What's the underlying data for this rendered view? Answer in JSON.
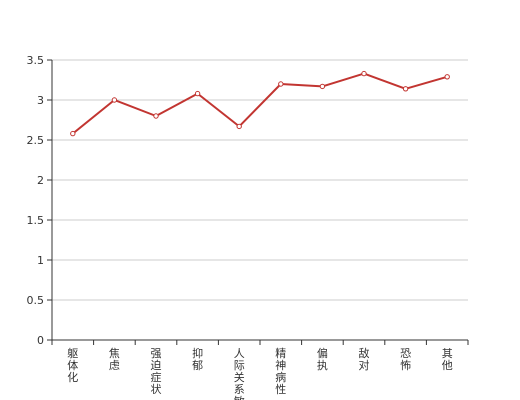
{
  "chart_data": {
    "type": "line",
    "title": "",
    "xlabel": "",
    "ylabel": "",
    "categories": [
      "躯体化",
      "焦虑",
      "强迫症状",
      "抑郁",
      "人际关系敏感",
      "精神病性",
      "偏执",
      "敌对",
      "恐怖",
      "其他"
    ],
    "series": [
      {
        "values": [
          2.58,
          3.0,
          2.8,
          3.08,
          2.67,
          3.2,
          3.17,
          3.33,
          3.14,
          3.29
        ]
      }
    ],
    "ylim": [
      0,
      3.5
    ],
    "yticks": [
      "0",
      "0.5",
      "1",
      "1.5",
      "2",
      "2.5",
      "3",
      "3.5"
    ],
    "ytick_values": [
      0,
      0.5,
      1,
      1.5,
      2,
      2.5,
      3,
      3.5
    ],
    "grid": true,
    "legend": "none",
    "colors": {
      "line": "#c23531",
      "grid": "#cccccc",
      "axis": "#333333",
      "marker_fill": "#ffffff"
    }
  }
}
